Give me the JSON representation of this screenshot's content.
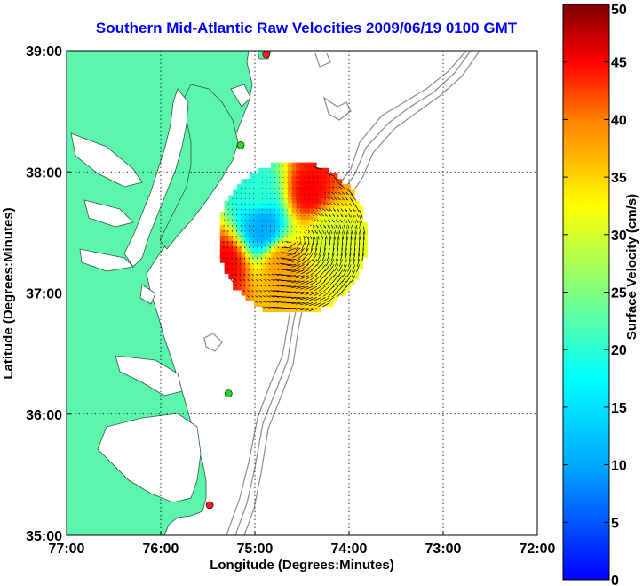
{
  "title": "Southern Mid-Atlantic Raw Velocities 2009/06/19 0100 GMT",
  "map": {
    "x_axis_label": "Longitude (Degrees:Minutes)",
    "y_axis_label": "Latitude (Degrees:Minutes)",
    "lon_range": [
      -77,
      -72
    ],
    "lat_range": [
      35,
      39
    ],
    "x_ticks": [
      {
        "value": -77,
        "label": "77:00"
      },
      {
        "value": -76,
        "label": "76:00"
      },
      {
        "value": -75,
        "label": "75:00"
      },
      {
        "value": -74,
        "label": "74:00"
      },
      {
        "value": -73,
        "label": "73:00"
      },
      {
        "value": -72,
        "label": "72:00"
      }
    ],
    "y_ticks": [
      {
        "value": 39,
        "label": "39:00"
      },
      {
        "value": 38,
        "label": "38:00"
      },
      {
        "value": 37,
        "label": "37:00"
      },
      {
        "value": 36,
        "label": "36:00"
      },
      {
        "value": 35,
        "label": "35:00"
      }
    ],
    "grid": true,
    "land_color": "#5cf5ad",
    "water_color": "#ffffff",
    "bathymetry_color": "#8c8c8c",
    "stations": [
      {
        "lon": -74.88,
        "lat": 38.97,
        "color": "#ff1e1e"
      },
      {
        "lon": -75.15,
        "lat": 38.22,
        "color": "#22dd22"
      },
      {
        "lon": -75.28,
        "lat": 36.17,
        "color": "#22dd22"
      },
      {
        "lon": -75.48,
        "lat": 35.25,
        "color": "#ff1e1e"
      }
    ]
  },
  "colorbar": {
    "label": "Surface Velocity (cm/s)",
    "min": 0,
    "max": 50,
    "ticks": [
      {
        "value": 0,
        "label": "0"
      },
      {
        "value": 5,
        "label": "5"
      },
      {
        "value": 10,
        "label": "10"
      },
      {
        "value": 15,
        "label": "15"
      },
      {
        "value": 20,
        "label": "20"
      },
      {
        "value": 25,
        "label": "25"
      },
      {
        "value": 30,
        "label": "30"
      },
      {
        "value": 35,
        "label": "35"
      },
      {
        "value": 40,
        "label": "40"
      },
      {
        "value": 45,
        "label": "45"
      },
      {
        "value": 50,
        "label": "50"
      }
    ]
  },
  "velocity_field": {
    "center": {
      "lon": -74.6,
      "lat": 37.45
    },
    "radius_deg": 0.62,
    "description_regions": [
      {
        "lon": -74.4,
        "lat": 37.85,
        "speed": 45
      },
      {
        "lon": -74.2,
        "lat": 37.5,
        "speed": 30
      },
      {
        "lon": -74.9,
        "lat": 37.55,
        "speed": 10
      },
      {
        "lon": -74.7,
        "lat": 37.25,
        "speed": 38
      },
      {
        "lon": -75.3,
        "lat": 37.25,
        "speed": 45
      },
      {
        "lon": -74.95,
        "lat": 37.85,
        "speed": 20
      }
    ]
  }
}
